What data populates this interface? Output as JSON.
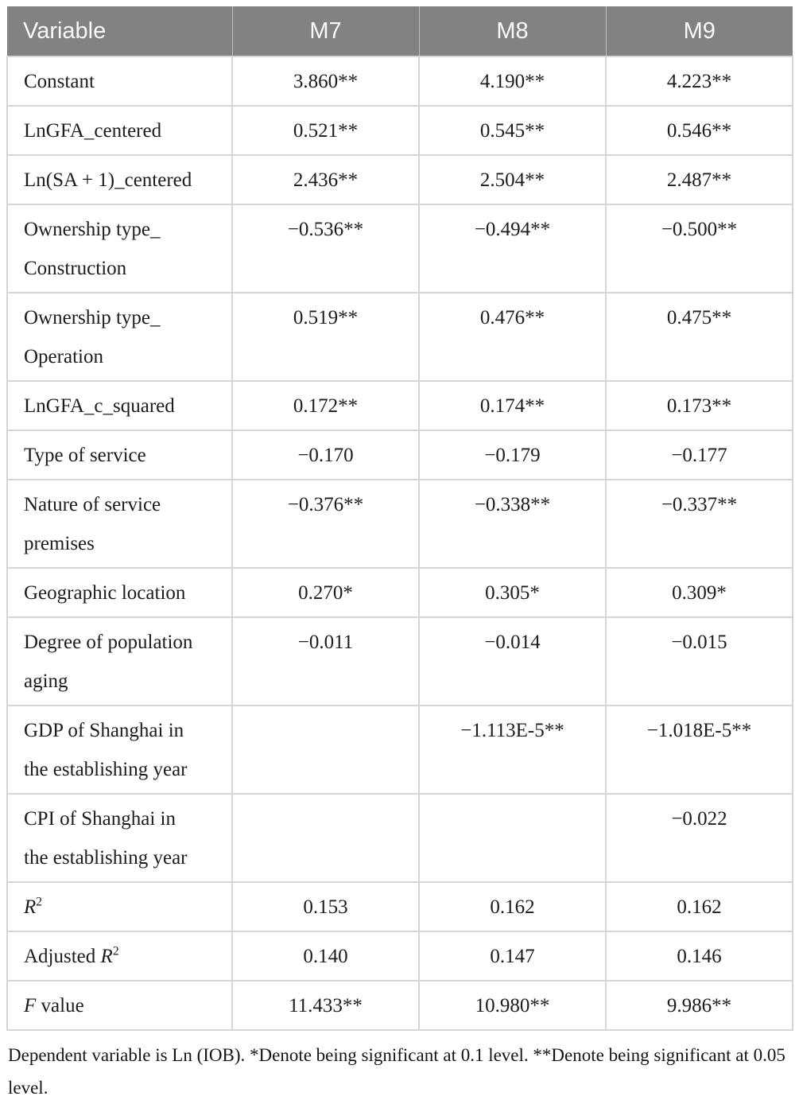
{
  "colors": {
    "header_bg": "#828282",
    "header_text": "#fafafa",
    "header_separator": "#bdbdbd",
    "cell_border": "#d5d5d5",
    "body_text": "#1c1c1c"
  },
  "table": {
    "header": {
      "columns": [
        "Variable",
        "M7",
        "M8",
        "M9"
      ]
    },
    "rows": [
      {
        "name": "constant",
        "label": [
          {
            "text": "Constant"
          }
        ],
        "values": [
          "3.860**",
          "4.190**",
          "4.223**"
        ]
      },
      {
        "name": "lngfa-centered",
        "label": [
          {
            "text": "LnGFA_centered"
          }
        ],
        "values": [
          "0.521**",
          "0.545**",
          "0.546**"
        ]
      },
      {
        "name": "lnsa-plus-1-centered",
        "label": [
          {
            "text": "Ln(SA + 1)_centered"
          }
        ],
        "values": [
          "2.436**",
          "2.504**",
          "2.487**"
        ]
      },
      {
        "name": "ownership-type-construction",
        "label": [
          {
            "text": "Ownership type_",
            "style": "line"
          },
          {
            "text": "Construction",
            "style": "line"
          }
        ],
        "values": [
          "−0.536**",
          "−0.494**",
          "−0.500**"
        ]
      },
      {
        "name": "ownership-type-operation",
        "label": [
          {
            "text": "Ownership type_",
            "style": "line"
          },
          {
            "text": "Operation",
            "style": "line"
          }
        ],
        "values": [
          "0.519**",
          "0.476**",
          "0.475**"
        ]
      },
      {
        "name": "lngfa-c-squared",
        "label": [
          {
            "text": "LnGFA_c_squared"
          }
        ],
        "values": [
          "0.172**",
          "0.174**",
          "0.173**"
        ]
      },
      {
        "name": "type-of-service",
        "label": [
          {
            "text": "Type of service"
          }
        ],
        "values": [
          "−0.170",
          "−0.179",
          "−0.177"
        ]
      },
      {
        "name": "nature-of-service-premises",
        "label": [
          {
            "text": "Nature of service",
            "style": "line"
          },
          {
            "text": "premises",
            "style": "line"
          }
        ],
        "values": [
          "−0.376**",
          "−0.338**",
          "−0.337**"
        ]
      },
      {
        "name": "geographic-location",
        "label": [
          {
            "text": "Geographic location"
          }
        ],
        "values": [
          "0.270*",
          "0.305*",
          "0.309*"
        ]
      },
      {
        "name": "degree-of-population-aging",
        "label": [
          {
            "text": "Degree of population",
            "style": "line"
          },
          {
            "text": "aging",
            "style": "line"
          }
        ],
        "values": [
          "−0.011",
          "−0.014",
          "−0.015"
        ]
      },
      {
        "name": "gdp-of-shanghai-establishing-year",
        "label": [
          {
            "text": "GDP of Shanghai in",
            "style": "line"
          },
          {
            "text": "the establishing year",
            "style": "line"
          }
        ],
        "values": [
          "",
          "−1.113E-5**",
          "−1.018E-5**"
        ]
      },
      {
        "name": "cpi-of-shanghai-establishing-year",
        "label": [
          {
            "text": "CPI of Shanghai in",
            "style": "line"
          },
          {
            "text": "the establishing year",
            "style": "line"
          }
        ],
        "values": [
          "",
          "",
          "−0.022"
        ]
      },
      {
        "name": "r-squared",
        "label": [
          {
            "text": "R",
            "style": "italic"
          },
          {
            "text": "2",
            "style": "sup"
          }
        ],
        "values": [
          "0.153",
          "0.162",
          "0.162"
        ]
      },
      {
        "name": "adjusted-r-squared",
        "label": [
          {
            "text": "Adjusted "
          },
          {
            "text": "R",
            "style": "italic"
          },
          {
            "text": "2",
            "style": "sup"
          }
        ],
        "values": [
          "0.140",
          "0.147",
          "0.146"
        ]
      },
      {
        "name": "f-value",
        "label": [
          {
            "text": "F",
            "style": "italic"
          },
          {
            "text": " value"
          }
        ],
        "values": [
          "11.433**",
          "10.980**",
          "9.986**"
        ]
      }
    ],
    "footnote": "Dependent variable is Ln (IOB). *Denote being significant at 0.1 level. **Denote being significant at 0.05 level."
  }
}
